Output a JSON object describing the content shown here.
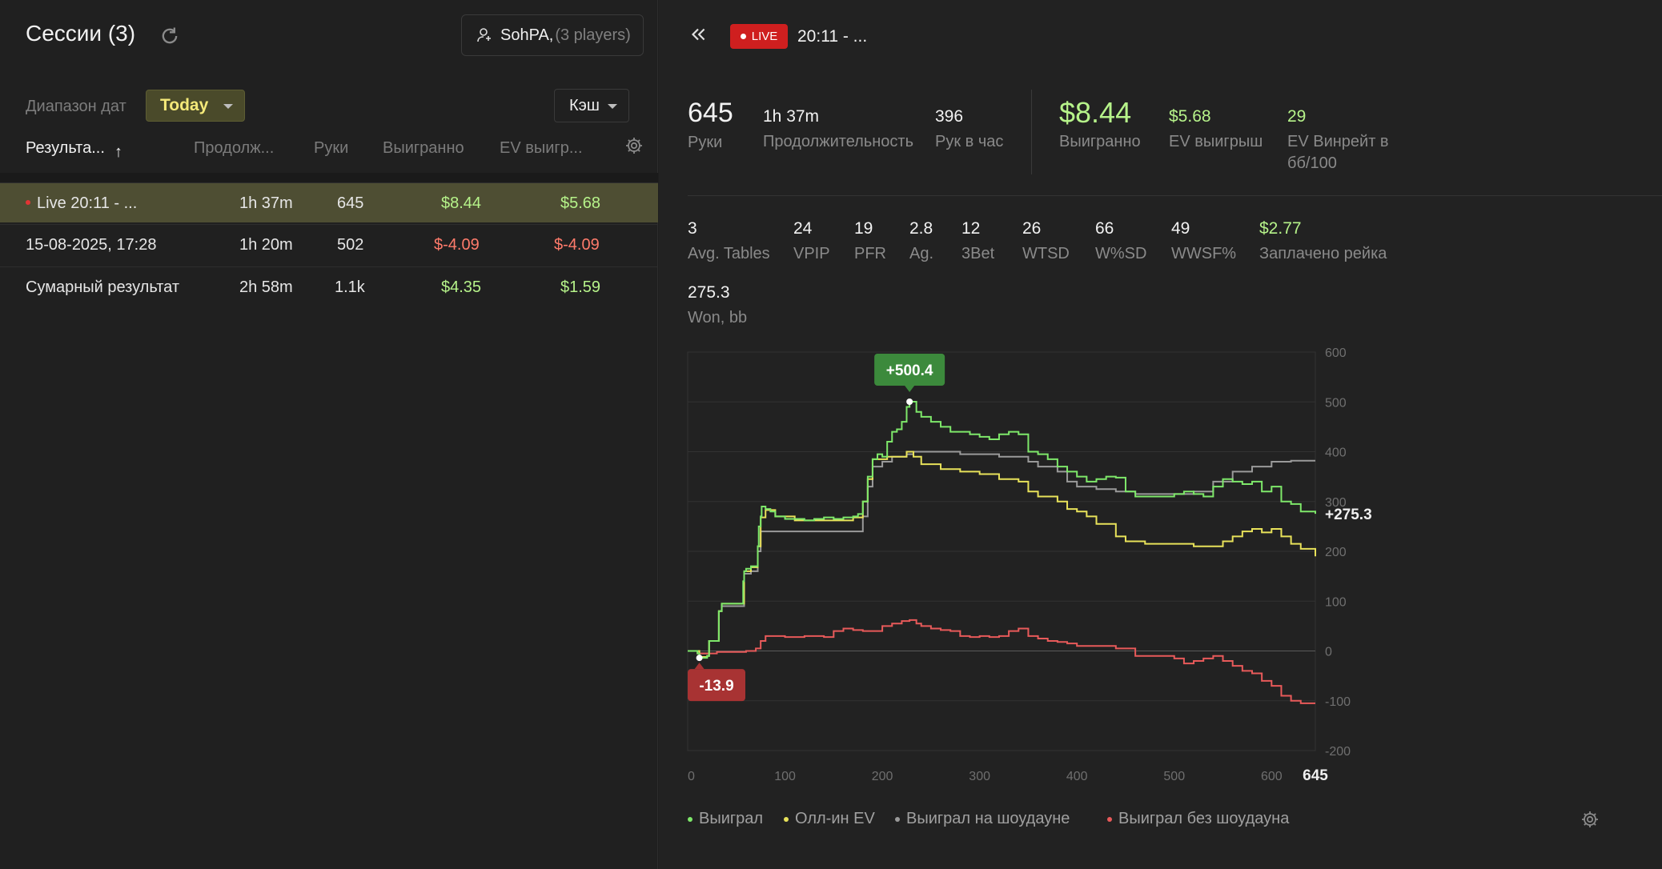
{
  "left": {
    "title": "Сессии (3)",
    "player": {
      "name": "SohPA,",
      "count": "(3 players)"
    },
    "date_label": "Диапазон дат",
    "date_value": "Today",
    "game_type": "Кэш",
    "columns": [
      "Результа...",
      "Продолж...",
      "Руки",
      "Выигранно",
      "EV выигр..."
    ],
    "sort_indicator": "↑",
    "rows": [
      {
        "name": "Live 20:11 - ...",
        "duration": "1h 37m",
        "hands": "645",
        "won": "$8.44",
        "ev": "$5.68",
        "live": true
      },
      {
        "name": "15-08-2025, 17:28",
        "duration": "1h 20m",
        "hands": "502",
        "won": "$-4.09",
        "ev": "$-4.09"
      },
      {
        "name": "Сумарный результат",
        "duration": "2h 58m",
        "hands": "1.1k",
        "won": "$4.35",
        "ev": "$1.59"
      }
    ]
  },
  "right": {
    "live_label": "LIVE",
    "session_title": "20:11 - ...",
    "stats_top": [
      {
        "value": "645",
        "label": "Руки"
      },
      {
        "value": "1h 37m",
        "label": "Продолжительность"
      },
      {
        "value": "396",
        "label": "Рук в час"
      },
      {
        "value": "$8.44",
        "label": "Выигранно"
      },
      {
        "value": "$5.68",
        "label": "EV выигрыш"
      },
      {
        "value": "29",
        "label": "EV Винрейт в",
        "label2": "бб/100"
      }
    ],
    "stats_second": [
      {
        "value": "3",
        "label": "Avg. Tables"
      },
      {
        "value": "24",
        "label": "VPIP"
      },
      {
        "value": "19",
        "label": "PFR"
      },
      {
        "value": "2.8",
        "label": "Ag."
      },
      {
        "value": "12",
        "label": "3Bet"
      },
      {
        "value": "26",
        "label": "WTSD"
      },
      {
        "value": "66",
        "label": "W%SD"
      },
      {
        "value": "49",
        "label": "WWSF%"
      },
      {
        "value": "$2.77",
        "label": "Заплачено рейка"
      }
    ],
    "stats_third": [
      {
        "value": "275.3",
        "label": "Won, bb"
      }
    ],
    "legend": [
      "Выиграл",
      "Олл-ин EV",
      "Выиграл на шоудауне",
      "Выиграл без шоудауна"
    ]
  },
  "colors": {
    "green": "#7ee86a",
    "yellow": "#e8e25a",
    "gray": "#9a9a9a",
    "red": "#e85a5a"
  },
  "chart_data": {
    "type": "line",
    "x_ticks": [
      "0",
      "100",
      "200",
      "300",
      "400",
      "500",
      "600"
    ],
    "x_max_label": "645",
    "y_ticks": [
      "600",
      "500",
      "400",
      "300",
      "200",
      "100",
      "0",
      "-100",
      "-200"
    ],
    "xlim": [
      0,
      645
    ],
    "ylim": [
      -200,
      600
    ],
    "max_label": "+500.4",
    "min_label": "-13.9",
    "end_label": "+275.3",
    "max_point": [
      228,
      500.4
    ],
    "min_point": [
      12,
      -13.9
    ],
    "series": [
      {
        "name": "Выиграл",
        "points": [
          [
            0,
            0
          ],
          [
            10,
            -5
          ],
          [
            12,
            -13.9
          ],
          [
            20,
            -10
          ],
          [
            22,
            20
          ],
          [
            30,
            20
          ],
          [
            32,
            80
          ],
          [
            35,
            95
          ],
          [
            55,
            95
          ],
          [
            57,
            140
          ],
          [
            58,
            160
          ],
          [
            60,
            165
          ],
          [
            65,
            170
          ],
          [
            70,
            170
          ],
          [
            72,
            210
          ],
          [
            73,
            250
          ],
          [
            75,
            270
          ],
          [
            76,
            290
          ],
          [
            80,
            285
          ],
          [
            85,
            280
          ],
          [
            90,
            270
          ],
          [
            100,
            265
          ],
          [
            110,
            265
          ],
          [
            120,
            262
          ],
          [
            130,
            265
          ],
          [
            140,
            268
          ],
          [
            150,
            265
          ],
          [
            160,
            268
          ],
          [
            170,
            270
          ],
          [
            175,
            275
          ],
          [
            180,
            300
          ],
          [
            185,
            350
          ],
          [
            190,
            385
          ],
          [
            195,
            395
          ],
          [
            200,
            390
          ],
          [
            205,
            420
          ],
          [
            210,
            440
          ],
          [
            215,
            445
          ],
          [
            220,
            460
          ],
          [
            225,
            490
          ],
          [
            228,
            500.4
          ],
          [
            235,
            480
          ],
          [
            240,
            470
          ],
          [
            250,
            460
          ],
          [
            260,
            450
          ],
          [
            270,
            440
          ],
          [
            280,
            440
          ],
          [
            290,
            435
          ],
          [
            300,
            430
          ],
          [
            310,
            425
          ],
          [
            320,
            435
          ],
          [
            330,
            440
          ],
          [
            340,
            435
          ],
          [
            350,
            400
          ],
          [
            360,
            395
          ],
          [
            370,
            385
          ],
          [
            380,
            370
          ],
          [
            390,
            360
          ],
          [
            400,
            350
          ],
          [
            410,
            340
          ],
          [
            420,
            345
          ],
          [
            430,
            350
          ],
          [
            440,
            348
          ],
          [
            450,
            320
          ],
          [
            460,
            310
          ],
          [
            480,
            310
          ],
          [
            500,
            315
          ],
          [
            510,
            320
          ],
          [
            520,
            315
          ],
          [
            530,
            310
          ],
          [
            540,
            330
          ],
          [
            550,
            345
          ],
          [
            560,
            340
          ],
          [
            570,
            335
          ],
          [
            580,
            340
          ],
          [
            590,
            320
          ],
          [
            600,
            330
          ],
          [
            610,
            300
          ],
          [
            620,
            295
          ],
          [
            630,
            280
          ],
          [
            645,
            275.3
          ]
        ]
      },
      {
        "name": "Олл-ин EV",
        "points": [
          [
            0,
            0
          ],
          [
            12,
            -12
          ],
          [
            20,
            -10
          ],
          [
            22,
            20
          ],
          [
            32,
            80
          ],
          [
            35,
            95
          ],
          [
            55,
            95
          ],
          [
            58,
            160
          ],
          [
            65,
            168
          ],
          [
            72,
            210
          ],
          [
            75,
            268
          ],
          [
            80,
            283
          ],
          [
            90,
            270
          ],
          [
            110,
            262
          ],
          [
            130,
            262
          ],
          [
            150,
            262
          ],
          [
            170,
            268
          ],
          [
            180,
            300
          ],
          [
            185,
            345
          ],
          [
            190,
            385
          ],
          [
            200,
            385
          ],
          [
            205,
            390
          ],
          [
            215,
            390
          ],
          [
            225,
            400
          ],
          [
            232,
            390
          ],
          [
            240,
            375
          ],
          [
            260,
            365
          ],
          [
            280,
            360
          ],
          [
            300,
            355
          ],
          [
            320,
            345
          ],
          [
            340,
            340
          ],
          [
            350,
            320
          ],
          [
            360,
            310
          ],
          [
            380,
            300
          ],
          [
            390,
            285
          ],
          [
            400,
            280
          ],
          [
            410,
            270
          ],
          [
            420,
            255
          ],
          [
            440,
            230
          ],
          [
            450,
            220
          ],
          [
            470,
            215
          ],
          [
            500,
            215
          ],
          [
            520,
            210
          ],
          [
            540,
            210
          ],
          [
            550,
            220
          ],
          [
            560,
            230
          ],
          [
            570,
            240
          ],
          [
            580,
            245
          ],
          [
            590,
            238
          ],
          [
            600,
            245
          ],
          [
            610,
            230
          ],
          [
            620,
            215
          ],
          [
            630,
            205
          ],
          [
            645,
            190
          ]
        ]
      },
      {
        "name": "Выиграл на шоудауне",
        "points": [
          [
            0,
            0
          ],
          [
            12,
            -5
          ],
          [
            20,
            -5
          ],
          [
            22,
            20
          ],
          [
            32,
            80
          ],
          [
            35,
            90
          ],
          [
            55,
            90
          ],
          [
            58,
            155
          ],
          [
            65,
            160
          ],
          [
            72,
            200
          ],
          [
            75,
            240
          ],
          [
            90,
            240
          ],
          [
            110,
            240
          ],
          [
            130,
            240
          ],
          [
            150,
            240
          ],
          [
            170,
            240
          ],
          [
            180,
            270
          ],
          [
            185,
            330
          ],
          [
            190,
            370
          ],
          [
            200,
            380
          ],
          [
            210,
            390
          ],
          [
            225,
            395
          ],
          [
            232,
            400
          ],
          [
            240,
            400
          ],
          [
            260,
            400
          ],
          [
            280,
            395
          ],
          [
            300,
            395
          ],
          [
            320,
            390
          ],
          [
            340,
            390
          ],
          [
            350,
            380
          ],
          [
            360,
            370
          ],
          [
            380,
            360
          ],
          [
            390,
            340
          ],
          [
            400,
            330
          ],
          [
            420,
            325
          ],
          [
            440,
            320
          ],
          [
            460,
            315
          ],
          [
            480,
            315
          ],
          [
            500,
            315
          ],
          [
            520,
            320
          ],
          [
            540,
            340
          ],
          [
            560,
            360
          ],
          [
            580,
            370
          ],
          [
            600,
            380
          ],
          [
            620,
            382
          ],
          [
            645,
            382
          ]
        ]
      },
      {
        "name": "Выиграл без шоудауна",
        "points": [
          [
            0,
            0
          ],
          [
            10,
            -5
          ],
          [
            20,
            -5
          ],
          [
            30,
            -2
          ],
          [
            40,
            -2
          ],
          [
            60,
            0
          ],
          [
            70,
            5
          ],
          [
            75,
            20
          ],
          [
            80,
            30
          ],
          [
            90,
            30
          ],
          [
            100,
            28
          ],
          [
            120,
            30
          ],
          [
            140,
            28
          ],
          [
            150,
            40
          ],
          [
            160,
            45
          ],
          [
            170,
            42
          ],
          [
            180,
            40
          ],
          [
            200,
            50
          ],
          [
            210,
            55
          ],
          [
            220,
            60
          ],
          [
            228,
            62
          ],
          [
            235,
            55
          ],
          [
            240,
            50
          ],
          [
            250,
            45
          ],
          [
            260,
            42
          ],
          [
            270,
            40
          ],
          [
            280,
            30
          ],
          [
            290,
            28
          ],
          [
            300,
            30
          ],
          [
            310,
            28
          ],
          [
            320,
            30
          ],
          [
            330,
            40
          ],
          [
            340,
            45
          ],
          [
            350,
            30
          ],
          [
            360,
            25
          ],
          [
            370,
            20
          ],
          [
            380,
            18
          ],
          [
            390,
            15
          ],
          [
            400,
            10
          ],
          [
            420,
            10
          ],
          [
            440,
            5
          ],
          [
            460,
            -10
          ],
          [
            480,
            -10
          ],
          [
            500,
            -15
          ],
          [
            510,
            -25
          ],
          [
            520,
            -20
          ],
          [
            530,
            -15
          ],
          [
            540,
            -10
          ],
          [
            550,
            -20
          ],
          [
            560,
            -30
          ],
          [
            570,
            -40
          ],
          [
            580,
            -45
          ],
          [
            590,
            -60
          ],
          [
            600,
            -70
          ],
          [
            610,
            -90
          ],
          [
            620,
            -100
          ],
          [
            630,
            -105
          ],
          [
            645,
            -105
          ]
        ]
      }
    ]
  }
}
